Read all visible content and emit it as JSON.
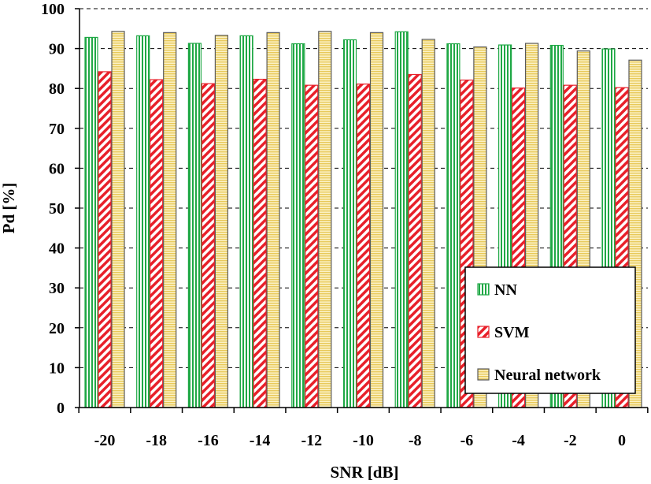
{
  "chart_data": {
    "type": "bar",
    "title": "",
    "xlabel": "SNR [dB]",
    "ylabel": "Pd [%]",
    "ylim": [
      0,
      100
    ],
    "yticks": [
      0,
      10,
      20,
      30,
      40,
      50,
      60,
      70,
      80,
      90,
      100
    ],
    "grid": "horizontal dashed",
    "legend_position": "bottom-right",
    "categories": [
      "-20",
      "-18",
      "-16",
      "-14",
      "-12",
      "-10",
      "-8",
      "-6",
      "-4",
      "-2",
      "0"
    ],
    "series": [
      {
        "name": "NN",
        "color": "#1fa845",
        "pattern": "vertical-stripes",
        "values": [
          92.8,
          93.2,
          91.3,
          93.2,
          91.2,
          92.2,
          94.2,
          91.2,
          90.9,
          90.8,
          89.9
        ]
      },
      {
        "name": "SVM",
        "color": "#e8202a",
        "pattern": "diagonal-stripes",
        "values": [
          84.2,
          82.2,
          81.2,
          82.3,
          80.8,
          81.1,
          83.5,
          82.1,
          80.1,
          80.8,
          80.2
        ]
      },
      {
        "name": "Neural network",
        "color": "#e8c95a",
        "pattern": "horizontal-stripes",
        "values": [
          94.3,
          94.0,
          93.3,
          94.0,
          94.3,
          94.0,
          92.3,
          90.4,
          91.3,
          89.4,
          87.1
        ]
      }
    ]
  }
}
